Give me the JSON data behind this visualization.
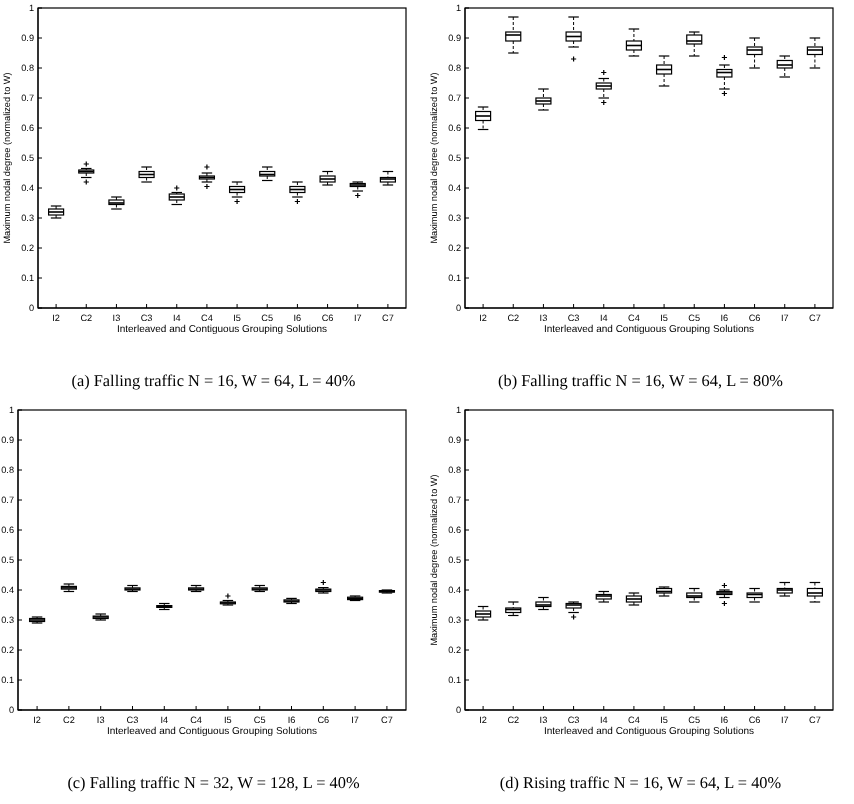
{
  "chart_data": [
    {
      "type": "box",
      "title": "(a) Falling traffic N = 16, W = 64, L = 40%",
      "xlabel": "Interleaved and Contiguous Grouping Solutions",
      "ylabel": "Maximum nodal degree (normalized to W)",
      "categories": [
        "I2",
        "C2",
        "I3",
        "C3",
        "I4",
        "C4",
        "I5",
        "C5",
        "I6",
        "C6",
        "I7",
        "C7"
      ],
      "ylim": [
        0,
        1
      ],
      "yticks": [
        0,
        0.1,
        0.2,
        0.3,
        0.4,
        0.5,
        0.6,
        0.7,
        0.8,
        0.9,
        1
      ],
      "grid": false,
      "marker": "cross",
      "boxes": [
        {
          "low": 0.3,
          "q1": 0.31,
          "median": 0.32,
          "q3": 0.33,
          "high": 0.34
        },
        {
          "low": 0.435,
          "q1": 0.45,
          "median": 0.455,
          "q3": 0.46,
          "high": 0.465,
          "outliers": [
            0.48,
            0.42
          ]
        },
        {
          "low": 0.33,
          "q1": 0.345,
          "median": 0.35,
          "q3": 0.36,
          "high": 0.37
        },
        {
          "low": 0.42,
          "q1": 0.435,
          "median": 0.445,
          "q3": 0.455,
          "high": 0.47
        },
        {
          "low": 0.345,
          "q1": 0.36,
          "median": 0.37,
          "q3": 0.38,
          "high": 0.385,
          "outliers": [
            0.4
          ]
        },
        {
          "low": 0.42,
          "q1": 0.43,
          "median": 0.435,
          "q3": 0.44,
          "high": 0.45,
          "outliers": [
            0.47,
            0.405
          ]
        },
        {
          "low": 0.37,
          "q1": 0.385,
          "median": 0.395,
          "q3": 0.405,
          "high": 0.42,
          "outliers": [
            0.355
          ]
        },
        {
          "low": 0.425,
          "q1": 0.44,
          "median": 0.445,
          "q3": 0.455,
          "high": 0.47
        },
        {
          "low": 0.37,
          "q1": 0.385,
          "median": 0.395,
          "q3": 0.405,
          "high": 0.42,
          "outliers": [
            0.355
          ]
        },
        {
          "low": 0.41,
          "q1": 0.42,
          "median": 0.43,
          "q3": 0.44,
          "high": 0.455
        },
        {
          "low": 0.39,
          "q1": 0.405,
          "median": 0.41,
          "q3": 0.415,
          "high": 0.42,
          "outliers": [
            0.375
          ]
        },
        {
          "low": 0.41,
          "q1": 0.42,
          "median": 0.43,
          "q3": 0.435,
          "high": 0.455
        }
      ]
    },
    {
      "type": "box",
      "title": "(b) Falling traffic N = 16, W = 64, L = 80%",
      "xlabel": "Interleaved and Contiguous Grouping Solutions",
      "ylabel": "Maximum nodal degree (normalized to W)",
      "categories": [
        "I2",
        "C2",
        "I3",
        "C3",
        "I4",
        "C4",
        "I5",
        "C5",
        "I6",
        "C6",
        "I7",
        "C7"
      ],
      "ylim": [
        0,
        1
      ],
      "yticks": [
        0,
        0.1,
        0.2,
        0.3,
        0.4,
        0.5,
        0.6,
        0.7,
        0.8,
        0.9,
        1
      ],
      "grid": false,
      "marker": "cross",
      "boxes": [
        {
          "low": 0.595,
          "q1": 0.625,
          "median": 0.64,
          "q3": 0.655,
          "high": 0.67
        },
        {
          "low": 0.85,
          "q1": 0.89,
          "median": 0.91,
          "q3": 0.92,
          "high": 0.97
        },
        {
          "low": 0.66,
          "q1": 0.68,
          "median": 0.69,
          "q3": 0.7,
          "high": 0.73
        },
        {
          "low": 0.87,
          "q1": 0.89,
          "median": 0.905,
          "q3": 0.92,
          "high": 0.97,
          "outliers": [
            0.83
          ]
        },
        {
          "low": 0.7,
          "q1": 0.73,
          "median": 0.74,
          "q3": 0.75,
          "high": 0.765,
          "outliers": [
            0.785,
            0.685
          ]
        },
        {
          "low": 0.84,
          "q1": 0.86,
          "median": 0.875,
          "q3": 0.89,
          "high": 0.93
        },
        {
          "low": 0.74,
          "q1": 0.78,
          "median": 0.795,
          "q3": 0.81,
          "high": 0.84
        },
        {
          "low": 0.84,
          "q1": 0.88,
          "median": 0.89,
          "q3": 0.91,
          "high": 0.92
        },
        {
          "low": 0.73,
          "q1": 0.77,
          "median": 0.785,
          "q3": 0.795,
          "high": 0.81,
          "outliers": [
            0.835,
            0.715
          ]
        },
        {
          "low": 0.8,
          "q1": 0.845,
          "median": 0.86,
          "q3": 0.87,
          "high": 0.9
        },
        {
          "low": 0.77,
          "q1": 0.8,
          "median": 0.81,
          "q3": 0.825,
          "high": 0.84
        },
        {
          "low": 0.8,
          "q1": 0.845,
          "median": 0.86,
          "q3": 0.87,
          "high": 0.9
        }
      ]
    },
    {
      "type": "box",
      "title": "(c) Falling traffic N = 32, W = 128, L = 40%",
      "xlabel": "Interleaved and Contiguous Grouping Solutions",
      "categories": [
        "I2",
        "C2",
        "I3",
        "C3",
        "I4",
        "C4",
        "I5",
        "C5",
        "I6",
        "C6",
        "I7",
        "C7"
      ],
      "ylim": [
        0,
        1
      ],
      "yticks": [
        0,
        0.1,
        0.2,
        0.3,
        0.4,
        0.5,
        0.6,
        0.7,
        0.8,
        0.9,
        1
      ],
      "grid": false,
      "marker": "cross",
      "boxes": [
        {
          "low": 0.29,
          "q1": 0.295,
          "median": 0.3,
          "q3": 0.305,
          "high": 0.31
        },
        {
          "low": 0.395,
          "q1": 0.403,
          "median": 0.407,
          "q3": 0.412,
          "high": 0.42
        },
        {
          "low": 0.3,
          "q1": 0.305,
          "median": 0.31,
          "q3": 0.313,
          "high": 0.32
        },
        {
          "low": 0.395,
          "q1": 0.4,
          "median": 0.403,
          "q3": 0.407,
          "high": 0.415
        },
        {
          "low": 0.335,
          "q1": 0.342,
          "median": 0.345,
          "q3": 0.348,
          "high": 0.355
        },
        {
          "low": 0.395,
          "q1": 0.4,
          "median": 0.403,
          "q3": 0.407,
          "high": 0.415
        },
        {
          "low": 0.35,
          "q1": 0.354,
          "median": 0.357,
          "q3": 0.36,
          "high": 0.365,
          "outliers": [
            0.38
          ]
        },
        {
          "low": 0.395,
          "q1": 0.4,
          "median": 0.403,
          "q3": 0.407,
          "high": 0.415
        },
        {
          "low": 0.355,
          "q1": 0.36,
          "median": 0.363,
          "q3": 0.367,
          "high": 0.372
        },
        {
          "low": 0.39,
          "q1": 0.395,
          "median": 0.4,
          "q3": 0.403,
          "high": 0.408,
          "outliers": [
            0.425
          ]
        },
        {
          "low": 0.365,
          "q1": 0.368,
          "median": 0.372,
          "q3": 0.376,
          "high": 0.38
        },
        {
          "low": 0.39,
          "q1": 0.393,
          "median": 0.395,
          "q3": 0.398,
          "high": 0.4
        }
      ]
    },
    {
      "type": "box",
      "title": "(d) Rising traffic N = 16, W = 64, L = 40%",
      "xlabel": "Interleaved and Contiguous Grouping Solutions",
      "ylabel": "Maximum nodal degree (normalized to W)",
      "categories": [
        "I2",
        "C2",
        "I3",
        "C3",
        "I4",
        "C4",
        "I5",
        "C5",
        "I6",
        "C6",
        "I7",
        "C7"
      ],
      "ylim": [
        0,
        1
      ],
      "yticks": [
        0,
        0.1,
        0.2,
        0.3,
        0.4,
        0.5,
        0.6,
        0.7,
        0.8,
        0.9,
        1
      ],
      "grid": false,
      "marker": "cross",
      "boxes": [
        {
          "low": 0.3,
          "q1": 0.31,
          "median": 0.32,
          "q3": 0.33,
          "high": 0.345
        },
        {
          "low": 0.315,
          "q1": 0.325,
          "median": 0.335,
          "q3": 0.34,
          "high": 0.36
        },
        {
          "low": 0.335,
          "q1": 0.345,
          "median": 0.35,
          "q3": 0.36,
          "high": 0.375
        },
        {
          "low": 0.325,
          "q1": 0.34,
          "median": 0.35,
          "q3": 0.355,
          "high": 0.36,
          "outliers": [
            0.31
          ]
        },
        {
          "low": 0.36,
          "q1": 0.37,
          "median": 0.38,
          "q3": 0.385,
          "high": 0.395
        },
        {
          "low": 0.35,
          "q1": 0.36,
          "median": 0.37,
          "q3": 0.38,
          "high": 0.39
        },
        {
          "low": 0.38,
          "q1": 0.39,
          "median": 0.395,
          "q3": 0.405,
          "high": 0.41
        },
        {
          "low": 0.36,
          "q1": 0.375,
          "median": 0.38,
          "q3": 0.39,
          "high": 0.405
        },
        {
          "low": 0.375,
          "q1": 0.385,
          "median": 0.39,
          "q3": 0.395,
          "high": 0.4,
          "outliers": [
            0.415,
            0.355
          ]
        },
        {
          "low": 0.36,
          "q1": 0.375,
          "median": 0.385,
          "q3": 0.39,
          "high": 0.405
        },
        {
          "low": 0.38,
          "q1": 0.39,
          "median": 0.4,
          "q3": 0.405,
          "high": 0.425
        },
        {
          "low": 0.36,
          "q1": 0.38,
          "median": 0.39,
          "q3": 0.405,
          "high": 0.425
        }
      ]
    }
  ]
}
